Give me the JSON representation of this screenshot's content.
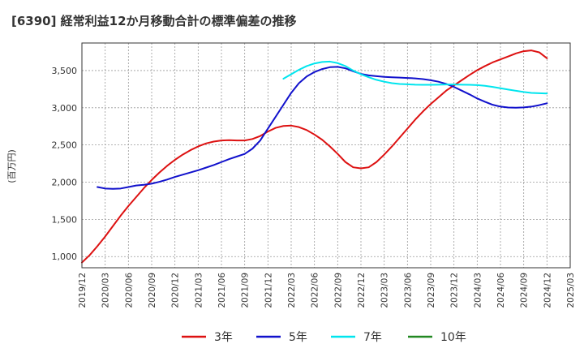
{
  "chart_data": {
    "type": "line",
    "title": "[6390]  経常利益12か月移動合計の標準偏差の推移",
    "ylabel": "(百万円)",
    "xlabel": "",
    "ylim": [
      850,
      3870
    ],
    "yticks": [
      1000,
      1500,
      2000,
      2500,
      3000,
      3500
    ],
    "ytick_labels": [
      "1,000",
      "1,500",
      "2,000",
      "2,500",
      "3,000",
      "3,500"
    ],
    "xlim": [
      "2019/12",
      "2025/03"
    ],
    "xtick_labels": [
      "2019/12",
      "2020/03",
      "2020/06",
      "2020/09",
      "2020/12",
      "2021/03",
      "2021/06",
      "2021/09",
      "2021/12",
      "2022/03",
      "2022/06",
      "2022/09",
      "2022/12",
      "2023/03",
      "2023/06",
      "2023/09",
      "2023/12",
      "2024/03",
      "2024/06",
      "2024/09",
      "2024/12",
      "2025/03"
    ],
    "grid": true,
    "legend_position": "bottom",
    "series": [
      {
        "name": "3年",
        "color": "#dd1111",
        "points": [
          [
            "2019/12",
            920
          ],
          [
            "2020/01",
            1020
          ],
          [
            "2020/02",
            1140
          ],
          [
            "2020/03",
            1270
          ],
          [
            "2020/04",
            1410
          ],
          [
            "2020/05",
            1550
          ],
          [
            "2020/06",
            1680
          ],
          [
            "2020/07",
            1800
          ],
          [
            "2020/08",
            1920
          ],
          [
            "2020/09",
            2030
          ],
          [
            "2020/10",
            2130
          ],
          [
            "2020/11",
            2220
          ],
          [
            "2020/12",
            2300
          ],
          [
            "2021/01",
            2370
          ],
          [
            "2021/02",
            2430
          ],
          [
            "2021/03",
            2480
          ],
          [
            "2021/04",
            2520
          ],
          [
            "2021/05",
            2545
          ],
          [
            "2021/06",
            2560
          ],
          [
            "2021/07",
            2565
          ],
          [
            "2021/08",
            2560
          ],
          [
            "2021/09",
            2560
          ],
          [
            "2021/10",
            2580
          ],
          [
            "2021/11",
            2620
          ],
          [
            "2021/12",
            2680
          ],
          [
            "2022/01",
            2730
          ],
          [
            "2022/02",
            2755
          ],
          [
            "2022/03",
            2760
          ],
          [
            "2022/04",
            2740
          ],
          [
            "2022/05",
            2700
          ],
          [
            "2022/06",
            2640
          ],
          [
            "2022/07",
            2570
          ],
          [
            "2022/08",
            2480
          ],
          [
            "2022/09",
            2380
          ],
          [
            "2022/10",
            2270
          ],
          [
            "2022/11",
            2200
          ],
          [
            "2022/12",
            2185
          ],
          [
            "2023/01",
            2200
          ],
          [
            "2023/02",
            2270
          ],
          [
            "2023/03",
            2370
          ],
          [
            "2023/04",
            2480
          ],
          [
            "2023/05",
            2600
          ],
          [
            "2023/06",
            2720
          ],
          [
            "2023/07",
            2840
          ],
          [
            "2023/08",
            2950
          ],
          [
            "2023/09",
            3050
          ],
          [
            "2023/10",
            3140
          ],
          [
            "2023/11",
            3230
          ],
          [
            "2023/12",
            3300
          ],
          [
            "2024/01",
            3370
          ],
          [
            "2024/02",
            3440
          ],
          [
            "2024/03",
            3505
          ],
          [
            "2024/04",
            3560
          ],
          [
            "2024/05",
            3610
          ],
          [
            "2024/06",
            3650
          ],
          [
            "2024/07",
            3690
          ],
          [
            "2024/08",
            3730
          ],
          [
            "2024/09",
            3760
          ],
          [
            "2024/10",
            3770
          ],
          [
            "2024/11",
            3745
          ],
          [
            "2024/12",
            3665
          ]
        ]
      },
      {
        "name": "5年",
        "color": "#1111cc",
        "points": [
          [
            "2020/02",
            1935
          ],
          [
            "2020/03",
            1915
          ],
          [
            "2020/04",
            1910
          ],
          [
            "2020/05",
            1915
          ],
          [
            "2020/06",
            1935
          ],
          [
            "2020/07",
            1955
          ],
          [
            "2020/08",
            1965
          ],
          [
            "2020/09",
            1980
          ],
          [
            "2020/10",
            2005
          ],
          [
            "2020/11",
            2035
          ],
          [
            "2020/12",
            2070
          ],
          [
            "2021/01",
            2100
          ],
          [
            "2021/02",
            2130
          ],
          [
            "2021/03",
            2160
          ],
          [
            "2021/04",
            2195
          ],
          [
            "2021/05",
            2230
          ],
          [
            "2021/06",
            2270
          ],
          [
            "2021/07",
            2310
          ],
          [
            "2021/08",
            2345
          ],
          [
            "2021/09",
            2380
          ],
          [
            "2021/10",
            2450
          ],
          [
            "2021/11",
            2560
          ],
          [
            "2021/12",
            2720
          ],
          [
            "2022/01",
            2880
          ],
          [
            "2022/02",
            3040
          ],
          [
            "2022/03",
            3200
          ],
          [
            "2022/04",
            3330
          ],
          [
            "2022/05",
            3420
          ],
          [
            "2022/06",
            3480
          ],
          [
            "2022/07",
            3520
          ],
          [
            "2022/08",
            3545
          ],
          [
            "2022/09",
            3550
          ],
          [
            "2022/10",
            3530
          ],
          [
            "2022/11",
            3490
          ],
          [
            "2022/12",
            3455
          ],
          [
            "2023/01",
            3435
          ],
          [
            "2023/02",
            3425
          ],
          [
            "2023/03",
            3415
          ],
          [
            "2023/04",
            3410
          ],
          [
            "2023/05",
            3405
          ],
          [
            "2023/06",
            3400
          ],
          [
            "2023/07",
            3395
          ],
          [
            "2023/08",
            3385
          ],
          [
            "2023/09",
            3370
          ],
          [
            "2023/10",
            3350
          ],
          [
            "2023/11",
            3320
          ],
          [
            "2023/12",
            3280
          ],
          [
            "2024/01",
            3230
          ],
          [
            "2024/02",
            3180
          ],
          [
            "2024/03",
            3125
          ],
          [
            "2024/04",
            3080
          ],
          [
            "2024/05",
            3040
          ],
          [
            "2024/06",
            3015
          ],
          [
            "2024/07",
            3003
          ],
          [
            "2024/08",
            3000
          ],
          [
            "2024/09",
            3005
          ],
          [
            "2024/10",
            3015
          ],
          [
            "2024/11",
            3035
          ],
          [
            "2024/12",
            3060
          ]
        ]
      },
      {
        "name": "7年",
        "color": "#00e5ee",
        "points": [
          [
            "2022/02",
            3390
          ],
          [
            "2022/03",
            3450
          ],
          [
            "2022/04",
            3510
          ],
          [
            "2022/05",
            3560
          ],
          [
            "2022/06",
            3595
          ],
          [
            "2022/07",
            3615
          ],
          [
            "2022/08",
            3620
          ],
          [
            "2022/09",
            3600
          ],
          [
            "2022/10",
            3560
          ],
          [
            "2022/11",
            3500
          ],
          [
            "2022/12",
            3450
          ],
          [
            "2023/01",
            3410
          ],
          [
            "2023/02",
            3375
          ],
          [
            "2023/03",
            3350
          ],
          [
            "2023/04",
            3330
          ],
          [
            "2023/05",
            3320
          ],
          [
            "2023/06",
            3315
          ],
          [
            "2023/07",
            3310
          ],
          [
            "2023/08",
            3308
          ],
          [
            "2023/09",
            3308
          ],
          [
            "2023/10",
            3310
          ],
          [
            "2023/11",
            3312
          ],
          [
            "2023/12",
            3312
          ],
          [
            "2024/01",
            3310
          ],
          [
            "2024/02",
            3308
          ],
          [
            "2024/03",
            3305
          ],
          [
            "2024/04",
            3295
          ],
          [
            "2024/05",
            3280
          ],
          [
            "2024/06",
            3262
          ],
          [
            "2024/07",
            3245
          ],
          [
            "2024/08",
            3228
          ],
          [
            "2024/09",
            3212
          ],
          [
            "2024/10",
            3200
          ],
          [
            "2024/11",
            3195
          ],
          [
            "2024/12",
            3192
          ]
        ]
      },
      {
        "name": "10年",
        "color": "#228822",
        "points": []
      }
    ]
  }
}
